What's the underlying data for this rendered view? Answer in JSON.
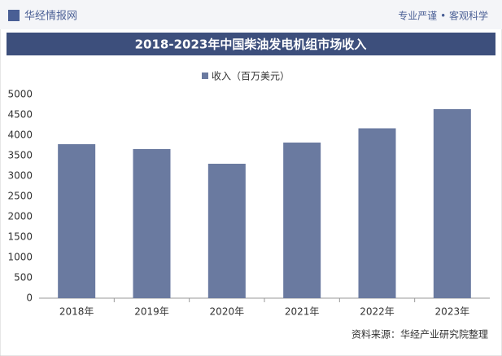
{
  "header": {
    "brand": "华经情报网",
    "slogan": "专业严谨 • 客观科学"
  },
  "chart_data": {
    "type": "bar",
    "title": "2018-2023年中国柴油发电机组市场收入",
    "categories": [
      "2018年",
      "2019年",
      "2020年",
      "2021年",
      "2022年",
      "2023年"
    ],
    "series": [
      {
        "name": "收入（百万美元）",
        "color": "#6a7aa0",
        "values": [
          3780,
          3660,
          3300,
          3820,
          4170,
          4640
        ]
      }
    ],
    "ylim": [
      0,
      5000
    ],
    "yticks": [
      0,
      500,
      1000,
      1500,
      2000,
      2500,
      3000,
      3500,
      4000,
      4500,
      5000
    ],
    "grid": false
  },
  "footer": {
    "source": "资料来源：华经产业研究院整理"
  }
}
